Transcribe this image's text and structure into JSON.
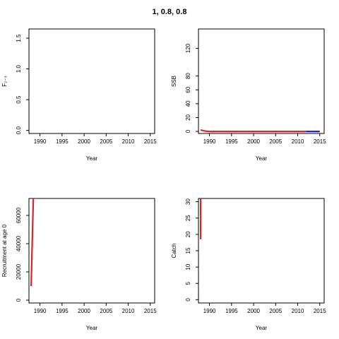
{
  "title": "1, 0.8, 0.8",
  "colors": {
    "red": "#d62728",
    "blue": "#1f1fe0",
    "axis": "#000000"
  },
  "chart_data": [
    {
      "type": "line",
      "id": "f",
      "xlabel": "Year",
      "ylabel": "F₂₋₃",
      "xlim": [
        1987.5,
        2016
      ],
      "ylim": [
        -0.05,
        1.65
      ],
      "xticks": [
        1990,
        1995,
        2000,
        2005,
        2010,
        2015
      ],
      "yticks": [
        0.0,
        0.5,
        1.0,
        1.5
      ],
      "ytick_labels": [
        "0.0",
        "0.5",
        "1.0",
        "1.5"
      ],
      "series": []
    },
    {
      "type": "line",
      "id": "ssb",
      "xlabel": "Year",
      "ylabel": "SSB",
      "xlim": [
        1987.5,
        2016
      ],
      "ylim": [
        -3,
        148
      ],
      "xticks": [
        1990,
        1995,
        2000,
        2005,
        2010,
        2015
      ],
      "yticks": [
        0,
        20,
        40,
        60,
        80,
        120
      ],
      "ytick_labels": [
        "0",
        "20",
        "40",
        "60",
        "80",
        "120"
      ],
      "series": [
        {
          "color": "red",
          "x": [
            1988,
            1989,
            1990,
            1995,
            2000,
            2005,
            2010,
            2012
          ],
          "y": [
            2,
            0.5,
            0,
            0,
            0,
            0,
            0,
            0
          ]
        },
        {
          "color": "blue",
          "x": [
            2012,
            2013,
            2014,
            2015
          ],
          "y": [
            0,
            0,
            0,
            0
          ]
        }
      ]
    },
    {
      "type": "line",
      "id": "recruitment",
      "xlabel": "Year",
      "ylabel": "Recruitment at age 0",
      "xlim": [
        1987.5,
        2016
      ],
      "ylim": [
        -2000,
        72000
      ],
      "xticks": [
        1990,
        1995,
        2000,
        2005,
        2010,
        2015
      ],
      "yticks": [
        0,
        20000,
        40000,
        60000
      ],
      "ytick_labels": [
        "0",
        "20000",
        "40000",
        "60000"
      ],
      "series": [
        {
          "color": "red",
          "x": [
            1988,
            1988.5
          ],
          "y": [
            10000,
            72000
          ]
        }
      ]
    },
    {
      "type": "line",
      "id": "catch",
      "xlabel": "Year",
      "ylabel": "Catch",
      "xlim": [
        1987.5,
        2016
      ],
      "ylim": [
        -1,
        31
      ],
      "xticks": [
        1990,
        1995,
        2000,
        2005,
        2010,
        2015
      ],
      "yticks": [
        0,
        5,
        10,
        15,
        20,
        25,
        30
      ],
      "ytick_labels": [
        "0",
        "5",
        "10",
        "15",
        "20",
        "25",
        "30"
      ],
      "series": [
        {
          "color": "red",
          "x": [
            1988,
            1988
          ],
          "y": [
            18.5,
            31
          ]
        }
      ]
    }
  ]
}
